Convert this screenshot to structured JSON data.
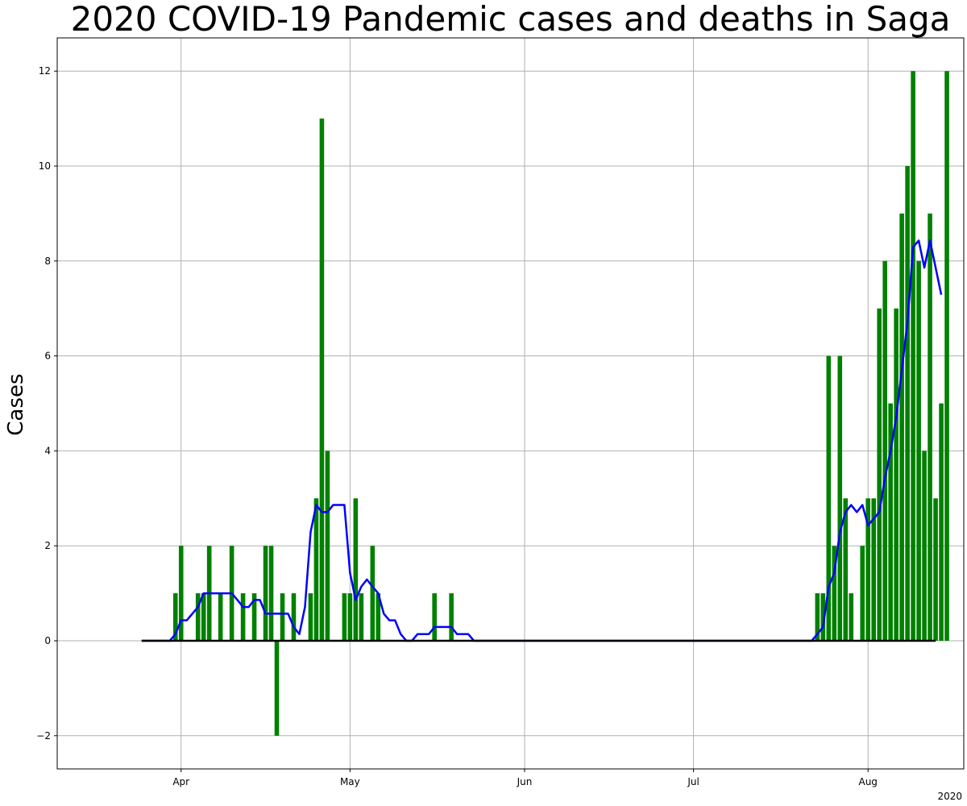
{
  "chart_data": {
    "type": "bar",
    "title": "2020 COVID-19 Pandemic cases and deaths in Saga",
    "ylabel": "Cases",
    "xlabel": "",
    "x_offset_label": "2020",
    "x_range": [
      "2020-03-10",
      "2020-08-18"
    ],
    "ylim": [
      -2.7,
      12.7
    ],
    "yticks": [
      -2,
      0,
      2,
      4,
      6,
      8,
      10,
      12
    ],
    "ytick_labels": [
      "−2",
      "0",
      "2",
      "4",
      "6",
      "8",
      "10",
      "12"
    ],
    "xticks": [
      {
        "date": "2020-04-01",
        "label": "Apr"
      },
      {
        "date": "2020-05-01",
        "label": "May"
      },
      {
        "date": "2020-06-01",
        "label": "Jun"
      },
      {
        "date": "2020-07-01",
        "label": "Jul"
      },
      {
        "date": "2020-08-01",
        "label": "Aug"
      }
    ],
    "grid": true,
    "colors": {
      "daily_cases": "#008000",
      "moving_average": "#0000ff",
      "deaths": "#000000"
    },
    "series": [
      {
        "kind": "bar",
        "start_date": "2020-03-31",
        "values": [
          1,
          2,
          0,
          0,
          1,
          1,
          2,
          0,
          1,
          0,
          2,
          0,
          1,
          0,
          1,
          0,
          2,
          2,
          -2,
          1,
          0,
          1,
          0,
          0,
          1,
          3,
          11,
          4,
          0,
          0,
          1,
          1,
          3,
          1,
          0,
          2,
          1,
          0,
          0,
          0,
          0,
          0,
          0,
          0,
          0,
          0,
          1,
          0,
          0,
          1,
          0,
          0,
          0,
          0,
          0,
          0,
          0,
          0,
          0,
          0,
          0,
          0,
          0,
          0,
          0,
          0,
          0,
          0,
          0,
          0,
          0,
          0,
          0,
          0,
          0,
          0,
          0,
          0,
          0,
          0,
          0,
          0,
          0,
          0,
          0,
          0,
          0,
          0,
          0,
          0,
          0,
          0,
          0,
          0,
          0,
          0,
          0,
          0,
          0,
          0,
          0,
          0,
          0,
          0,
          0,
          0,
          0,
          0,
          0,
          0,
          0,
          0,
          0,
          0,
          1,
          1,
          6,
          2,
          6,
          3,
          1,
          0,
          2,
          3,
          3,
          7,
          8,
          5,
          7,
          9,
          10,
          12,
          8,
          4,
          9,
          3,
          5,
          12
        ]
      },
      {
        "kind": "line",
        "start_date": "2020-03-25",
        "values": [
          0,
          0,
          0,
          0,
          0,
          0,
          0.14,
          0.43,
          0.43,
          0.57,
          0.71,
          1,
          1,
          1,
          1,
          1,
          1,
          0.86,
          0.71,
          0.71,
          0.86,
          0.86,
          0.57,
          0.57,
          0.57,
          0.57,
          0.57,
          0.29,
          0.14,
          0.71,
          2.29,
          2.86,
          2.71,
          2.71,
          2.86,
          2.86,
          2.86,
          1.43,
          0.86,
          1.14,
          1.29,
          1.14,
          1,
          0.57,
          0.43,
          0.43,
          0.14,
          0,
          0,
          0.14,
          0.14,
          0.14,
          0.29,
          0.29,
          0.29,
          0.29,
          0.14,
          0.14,
          0.14,
          0,
          0,
          0,
          0,
          0,
          0,
          0,
          0,
          0,
          0,
          0,
          0,
          0,
          0,
          0,
          0,
          0,
          0,
          0,
          0,
          0,
          0,
          0,
          0,
          0,
          0,
          0,
          0,
          0,
          0,
          0,
          0,
          0,
          0,
          0,
          0,
          0,
          0,
          0,
          0,
          0,
          0,
          0,
          0,
          0,
          0,
          0,
          0,
          0,
          0,
          0,
          0,
          0,
          0,
          0,
          0,
          0,
          0,
          0,
          0,
          0,
          0.14,
          0.29,
          1.14,
          1.43,
          2.29,
          2.71,
          2.86,
          2.71,
          2.86,
          2.43,
          2.57,
          2.71,
          3.43,
          4,
          4.71,
          5.71,
          6.71,
          8.29,
          8.43,
          7.86,
          8.43,
          7.86,
          7.29
        ]
      },
      {
        "kind": "line",
        "start_date": "2020-03-25",
        "end_date": "2020-08-13",
        "constant_value": 0
      }
    ]
  }
}
